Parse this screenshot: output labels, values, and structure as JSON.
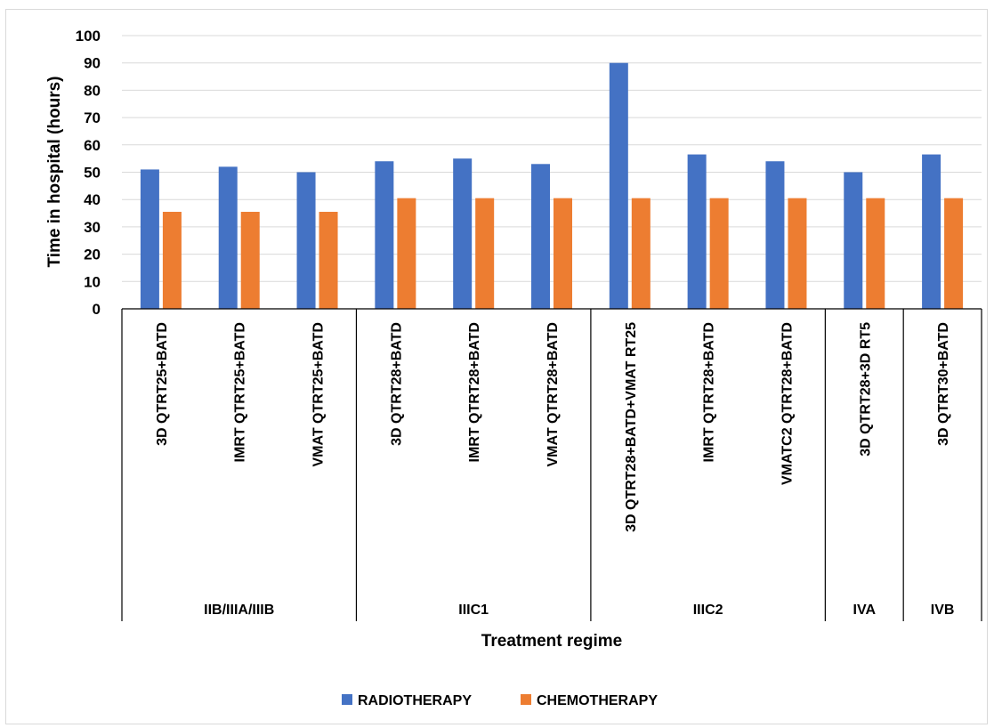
{
  "chart_data": {
    "type": "bar",
    "title": "",
    "xlabel": "Treatment regime",
    "ylabel": "Time in hospital (hours)",
    "ylim": [
      0,
      100
    ],
    "yticks": [
      0,
      10,
      20,
      30,
      40,
      50,
      60,
      70,
      80,
      90,
      100
    ],
    "grid": true,
    "legend_position": "bottom",
    "categories": [
      "3D QTRT25+BATD",
      "IMRT QTRT25+BATD",
      "VMAT QTRT25+BATD",
      "3D QTRT28+BATD",
      "IMRT QTRT28+BATD",
      "VMAT QTRT28+BATD",
      "3D QTRT28+BATD+VMAT RT25",
      "IMRT QTRT28+BATD",
      "VMATC2 QTRT28+BATD",
      "3D QTRT28+3D RT5",
      "3D QTRT30+BATD"
    ],
    "groups": [
      {
        "label": "IIB/IIIA/IIIB",
        "count": 3
      },
      {
        "label": "IIIC1",
        "count": 3
      },
      {
        "label": "IIIC2",
        "count": 3
      },
      {
        "label": "IVA",
        "count": 1
      },
      {
        "label": "IVB",
        "count": 1
      }
    ],
    "series": [
      {
        "name": "RADIOTHERAPY",
        "color": "#4472C4",
        "values": [
          51,
          52,
          50,
          54,
          55,
          53,
          90,
          56.5,
          54,
          50,
          56.5
        ]
      },
      {
        "name": "CHEMOTHERAPY",
        "color": "#ED7D31",
        "values": [
          35.5,
          35.5,
          35.5,
          40.5,
          40.5,
          40.5,
          40.5,
          40.5,
          40.5,
          40.5,
          40.5
        ]
      }
    ]
  }
}
